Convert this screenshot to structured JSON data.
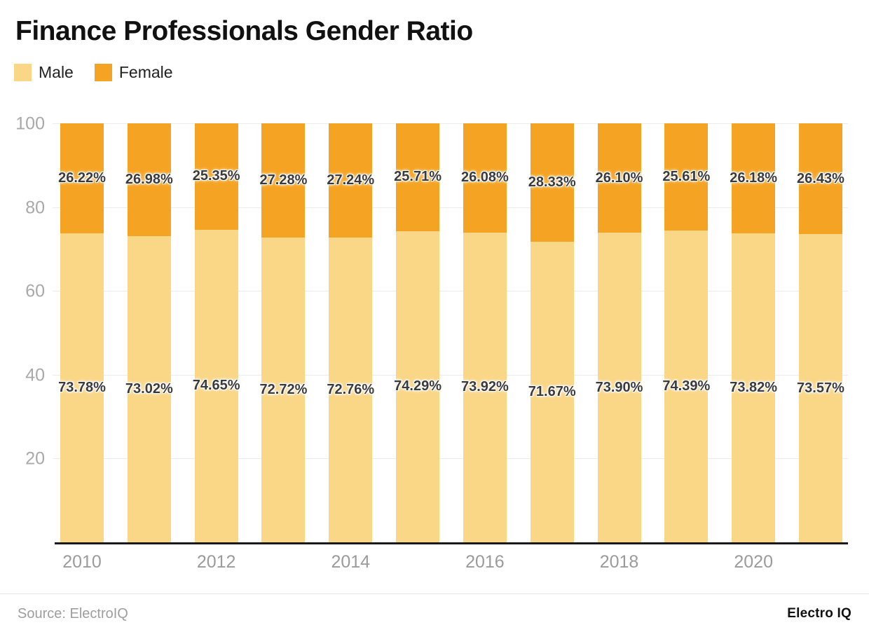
{
  "title": "Finance Professionals Gender Ratio",
  "legend": {
    "items": [
      {
        "label": "Male",
        "color": "#FAD687"
      },
      {
        "label": "Female",
        "color": "#F5A322"
      }
    ]
  },
  "chart_data": {
    "type": "bar",
    "stacked": true,
    "title": "Finance Professionals Gender Ratio",
    "categories": [
      "2010",
      "2011",
      "2012",
      "2013",
      "2014",
      "2015",
      "2016",
      "2017",
      "2018",
      "2019",
      "2020",
      "2021"
    ],
    "series": [
      {
        "name": "Male",
        "color": "#FAD687",
        "values": [
          73.78,
          73.02,
          74.65,
          72.72,
          72.76,
          74.29,
          73.92,
          71.67,
          73.9,
          74.39,
          73.82,
          73.57
        ]
      },
      {
        "name": "Female",
        "color": "#F5A322",
        "values": [
          26.22,
          26.98,
          25.35,
          27.28,
          27.24,
          25.71,
          26.08,
          28.33,
          26.1,
          25.61,
          26.18,
          26.43
        ]
      }
    ],
    "value_suffix": "%",
    "xlabel": "",
    "ylabel": "",
    "ylim": [
      0,
      100
    ],
    "yticks": [
      20,
      40,
      60,
      80,
      100
    ],
    "x_tick_labels": [
      "2010",
      "2012",
      "2014",
      "2016",
      "2018",
      "2020"
    ],
    "x_tick_indices": [
      0,
      2,
      4,
      6,
      8,
      10
    ],
    "grid": true,
    "legend_position": "top-left",
    "label_color": "#3b3b3b",
    "axis_color": "#a9a9a9",
    "baseline_color": "#1a1a1a"
  },
  "footer": {
    "source": "Source: ElectroIQ",
    "brand": "Electro IQ"
  }
}
